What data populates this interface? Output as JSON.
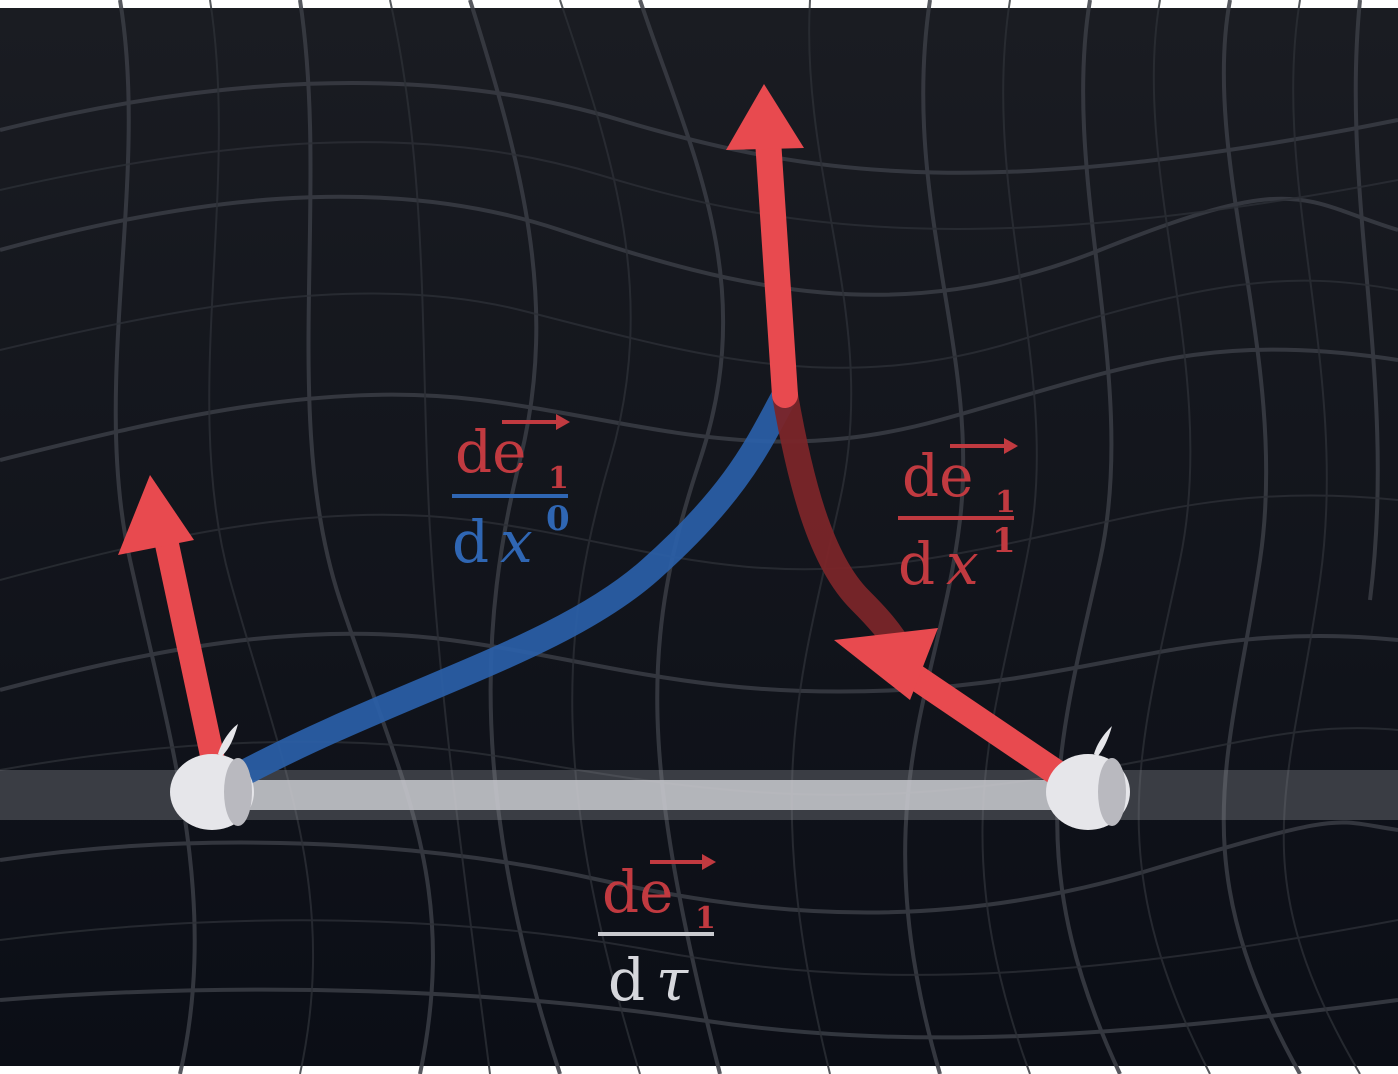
{
  "colors": {
    "background": "#0b0e16",
    "grid": "#3a3d45",
    "red_vector": "#e84a4f",
    "red_label": "#c13a40",
    "blue_path": "#2a5fa8",
    "blue_label": "#2f66b3",
    "worldline": "#c9cacf",
    "apple": "#e6e6ea"
  },
  "labels": {
    "dx0": {
      "numerator": "de",
      "sub": "1",
      "den_d": "d",
      "den_var": "x",
      "den_sup": "0"
    },
    "dx1": {
      "numerator": "de",
      "sub": "1",
      "den_d": "d",
      "den_var": "x",
      "den_sup": "1"
    },
    "dtau": {
      "numerator": "de",
      "sub": "1",
      "den_d": "d",
      "den_var": "τ"
    }
  },
  "icons": {
    "observer_left": "apple-icon",
    "observer_right": "apple-icon"
  }
}
